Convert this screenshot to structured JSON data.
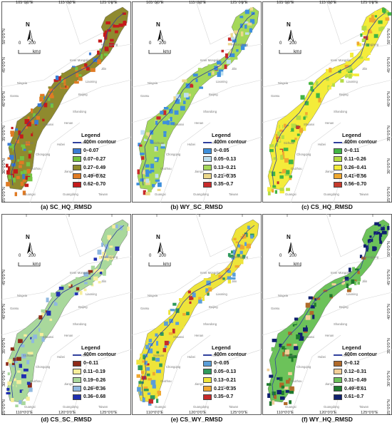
{
  "lon_labels": [
    "105°0'0\"E",
    "115°0'0\"E",
    "125°0'0\"E"
  ],
  "lon_labels_bottom": [
    "110°0'0\"E",
    "120°0'0\"E",
    "125°0'0\"E"
  ],
  "lat_labels": [
    "50°0'0\"N",
    "45°0'0\"N",
    "40°0'0\"N",
    "35°0'0\"N",
    "30°0'0\"N",
    "25°0'0\"N"
  ],
  "north_label": "N",
  "scale_zero": "0",
  "scale_value": "200",
  "scale_unit": "km",
  "legend_title": "Legend",
  "contour_label": "400m contour",
  "contour_color": "#2f3f9c",
  "provinces": [
    "Heilongjiang",
    "Jilin",
    "Inner Mongolia",
    "Liaoning",
    "Ningxia",
    "Beijing",
    "Gansu",
    "Shandong",
    "Shaanxi",
    "Henan",
    "Sichuan",
    "Hubei",
    "Chongqing",
    "Anhui",
    "Guizhou",
    "Jiangxi",
    "Fujian",
    "Guangxi",
    "Guangdong",
    "Taiwan"
  ],
  "panels": [
    {
      "title": "(a) SC_HQ_RMSD",
      "scheme": "a",
      "legend": [
        {
          "label": "0–0.07",
          "color": "#3a7bd5"
        },
        {
          "label": "0.07–0.27",
          "color": "#74c442"
        },
        {
          "label": "0.27–0.49",
          "color": "#8f8a2e"
        },
        {
          "label": "0.49–0.62",
          "color": "#e07b24"
        },
        {
          "label": "0.62–0.70",
          "color": "#c51b1b"
        }
      ]
    },
    {
      "title": "(b) WY_SC_RMSD",
      "scheme": "b",
      "legend": [
        {
          "label": "0–0.05",
          "color": "#3d8fdc"
        },
        {
          "label": "0.05–0.13",
          "color": "#bfe0f0"
        },
        {
          "label": "0.13–0.21",
          "color": "#a4d85a"
        },
        {
          "label": "0.21–0.35",
          "color": "#ecd88b"
        },
        {
          "label": "0.35–0.7",
          "color": "#c82a2a"
        }
      ]
    },
    {
      "title": "(c) CS_HQ_RMSD",
      "scheme": "c",
      "legend": [
        {
          "label": "0–0.11",
          "color": "#41b544"
        },
        {
          "label": "0.11–0.26",
          "color": "#b6dc45"
        },
        {
          "label": "0.26–0.41",
          "color": "#f4ec3a"
        },
        {
          "label": "0.41–0.56",
          "color": "#f0a830"
        },
        {
          "label": "0.56–0.70",
          "color": "#c63a2c"
        }
      ]
    },
    {
      "title": "(d) CS_SC_RMSD",
      "scheme": "d",
      "legend": [
        {
          "label": "0–0.11",
          "color": "#8e2a18"
        },
        {
          "label": "0.11–0.19",
          "color": "#f6ee9c"
        },
        {
          "label": "0.19–0.26",
          "color": "#a9d89c"
        },
        {
          "label": "0.26–0.36",
          "color": "#8fb8e0"
        },
        {
          "label": "0.36–0.68",
          "color": "#1f2fb0"
        }
      ]
    },
    {
      "title": "(e) CS_WY_RMSD",
      "scheme": "e",
      "legend": [
        {
          "label": "0–0.05",
          "color": "#5a9ed8"
        },
        {
          "label": "0.05–0.13",
          "color": "#2e9a5c"
        },
        {
          "label": "0.13–0.21",
          "color": "#eee43a"
        },
        {
          "label": "0.21–0.35",
          "color": "#f0a830"
        },
        {
          "label": "0.35–0.7",
          "color": "#c62a2a"
        }
      ]
    },
    {
      "title": "(f) WY_HQ_RMSD",
      "scheme": "f",
      "legend": [
        {
          "label": "0–0.12",
          "color": "#b06a2a"
        },
        {
          "label": "0.12–0.31",
          "color": "#f2cf98"
        },
        {
          "label": "0.31–0.49",
          "color": "#6cc25a"
        },
        {
          "label": "0.49–0.61",
          "color": "#1e7a2e"
        },
        {
          "label": "0.61–0.7",
          "color": "#10206e"
        }
      ]
    }
  ]
}
